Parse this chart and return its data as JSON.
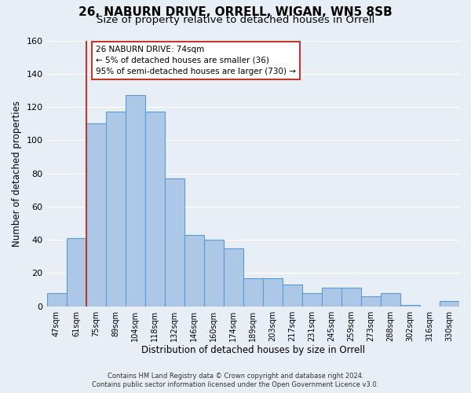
{
  "title": "26, NABURN DRIVE, ORRELL, WIGAN, WN5 8SB",
  "subtitle": "Size of property relative to detached houses in Orrell",
  "xlabel": "Distribution of detached houses by size in Orrell",
  "ylabel": "Number of detached properties",
  "bin_labels": [
    "47sqm",
    "61sqm",
    "75sqm",
    "89sqm",
    "104sqm",
    "118sqm",
    "132sqm",
    "146sqm",
    "160sqm",
    "174sqm",
    "189sqm",
    "203sqm",
    "217sqm",
    "231sqm",
    "245sqm",
    "259sqm",
    "273sqm",
    "288sqm",
    "302sqm",
    "316sqm",
    "330sqm"
  ],
  "bar_heights": [
    8,
    41,
    110,
    117,
    127,
    117,
    77,
    43,
    40,
    35,
    17,
    17,
    13,
    8,
    11,
    11,
    6,
    8,
    1,
    0,
    3
  ],
  "bar_color": "#adc8e6",
  "bar_edge_color": "#5b9bd5",
  "ylim": [
    0,
    160
  ],
  "yticks": [
    0,
    20,
    40,
    60,
    80,
    100,
    120,
    140,
    160
  ],
  "annotation_text": "26 NABURN DRIVE: 74sqm\n← 5% of detached houses are smaller (36)\n95% of semi-detached houses are larger (730) →",
  "annotation_box_edge": "#c0392b",
  "footer1": "Contains HM Land Registry data © Crown copyright and database right 2024.",
  "footer2": "Contains public sector information licensed under the Open Government Licence v3.0.",
  "background_color": "#e8eef5",
  "grid_color": "#ffffff",
  "title_fontsize": 11,
  "subtitle_fontsize": 9.5
}
